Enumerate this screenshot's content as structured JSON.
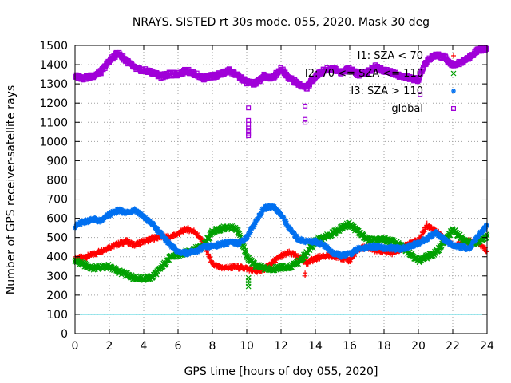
{
  "chart_data": {
    "type": "scatter",
    "title": "NRAYS. SISTED rt 30s mode. 055, 2020. Mask 30 deg",
    "xlabel": "GPS time [hours of doy 055, 2020]",
    "ylabel": "Number of GPS receiver-satellite rays",
    "xlim": [
      0,
      24
    ],
    "ylim": [
      0,
      1500
    ],
    "x_ticks": [
      "0",
      "2",
      "4",
      "6",
      "8",
      "10",
      "12",
      "14",
      "16",
      "18",
      "20",
      "22",
      "24"
    ],
    "y_ticks": [
      "0",
      "100",
      "200",
      "300",
      "400",
      "500",
      "600",
      "700",
      "800",
      "900",
      "1000",
      "1100",
      "1200",
      "1300",
      "1400",
      "1500"
    ],
    "grid": true,
    "legend_position": "top-right",
    "reference_line": {
      "y": 100,
      "color": "#00c0d0"
    },
    "series": [
      {
        "name": "I1: SZA < 70",
        "marker": "+",
        "color": "#ff0000",
        "x": [
          0,
          0.5,
          1,
          1.5,
          2,
          2.5,
          3,
          3.5,
          4,
          4.5,
          5,
          5.5,
          6,
          6.5,
          7,
          7.5,
          8,
          8.5,
          9,
          9.5,
          10,
          10.5,
          11,
          11.5,
          12,
          12.5,
          13,
          13.5,
          14,
          14.5,
          15,
          15.5,
          16,
          16.5,
          17,
          17.5,
          18,
          18.5,
          19,
          19.5,
          20,
          20.5,
          21,
          21.5,
          22,
          22.5,
          23,
          23.5,
          24
        ],
        "y": [
          390,
          395,
          410,
          430,
          450,
          465,
          480,
          460,
          480,
          495,
          505,
          500,
          520,
          545,
          530,
          470,
          360,
          340,
          345,
          345,
          340,
          325,
          335,
          370,
          405,
          420,
          400,
          370,
          390,
          405,
          400,
          395,
          380,
          440,
          450,
          430,
          430,
          420,
          440,
          475,
          480,
          565,
          535,
          500,
          460,
          470,
          480,
          470,
          430
        ]
      },
      {
        "name": "I2: 70 <= SZA <= 110",
        "marker": "x",
        "color": "#00a000",
        "x": [
          0,
          0.5,
          1,
          1.5,
          2,
          2.5,
          3,
          3.5,
          4,
          4.5,
          5,
          5.5,
          6,
          6.5,
          7,
          7.5,
          8,
          8.5,
          9,
          9.5,
          10,
          10.5,
          11,
          11.5,
          12,
          12.5,
          13,
          13.5,
          14,
          14.5,
          15,
          15.5,
          16,
          16.5,
          17,
          17.5,
          18,
          18.5,
          19,
          19.5,
          20,
          20.5,
          21,
          21.5,
          22,
          22.5,
          23,
          23.5,
          24
        ],
        "y": [
          380,
          360,
          340,
          345,
          350,
          325,
          305,
          290,
          285,
          295,
          340,
          395,
          410,
          425,
          440,
          460,
          530,
          545,
          555,
          535,
          400,
          355,
          340,
          335,
          345,
          345,
          370,
          420,
          480,
          500,
          520,
          550,
          570,
          530,
          490,
          485,
          490,
          480,
          455,
          420,
          380,
          400,
          420,
          480,
          540,
          500,
          470,
          480,
          510
        ]
      },
      {
        "name": "I3: SZA > 110",
        "marker": "*",
        "color": "#0070f0",
        "x": [
          0,
          0.5,
          1,
          1.5,
          2,
          2.5,
          3,
          3.5,
          4,
          4.5,
          5,
          5.5,
          6,
          6.5,
          7,
          7.5,
          8,
          8.5,
          9,
          9.5,
          10,
          10.5,
          11,
          11.5,
          12,
          12.5,
          13,
          13.5,
          14,
          14.5,
          15,
          15.5,
          16,
          16.5,
          17,
          17.5,
          18,
          18.5,
          19,
          19.5,
          20,
          20.5,
          21,
          21.5,
          22,
          22.5,
          23,
          23.5,
          24
        ],
        "y": [
          560,
          580,
          595,
          585,
          620,
          640,
          630,
          645,
          605,
          570,
          520,
          465,
          425,
          420,
          425,
          450,
          455,
          465,
          475,
          470,
          500,
          580,
          650,
          665,
          620,
          545,
          490,
          480,
          480,
          460,
          420,
          405,
          415,
          440,
          450,
          455,
          445,
          445,
          440,
          455,
          470,
          495,
          525,
          490,
          460,
          450,
          445,
          510,
          560
        ]
      },
      {
        "name": "global",
        "marker": "square",
        "color": "#a000d8",
        "x": [
          0,
          0.5,
          1,
          1.5,
          2,
          2.5,
          3,
          3.5,
          4,
          4.5,
          5,
          5.5,
          6,
          6.5,
          7,
          7.5,
          8,
          8.5,
          9,
          9.5,
          10,
          10.5,
          11,
          11.5,
          12,
          12.5,
          13,
          13.5,
          14,
          14.5,
          15,
          15.5,
          16,
          16.5,
          17,
          17.5,
          18,
          18.5,
          19,
          19.5,
          20,
          20.5,
          21,
          21.5,
          22,
          22.5,
          23,
          23.5,
          24
        ],
        "y": [
          1340,
          1330,
          1340,
          1360,
          1420,
          1460,
          1420,
          1380,
          1370,
          1360,
          1340,
          1350,
          1350,
          1370,
          1350,
          1330,
          1340,
          1350,
          1370,
          1340,
          1310,
          1300,
          1340,
          1330,
          1380,
          1330,
          1300,
          1280,
          1340,
          1370,
          1380,
          1360,
          1380,
          1350,
          1360,
          1390,
          1370,
          1360,
          1340,
          1330,
          1320,
          1420,
          1450,
          1440,
          1400,
          1410,
          1440,
          1480,
          1480
        ]
      }
    ],
    "outliers": {
      "global": [
        {
          "x": 10.1,
          "y": 1175
        },
        {
          "x": 10.1,
          "y": 1110
        },
        {
          "x": 10.1,
          "y": 1090
        },
        {
          "x": 10.1,
          "y": 1070
        },
        {
          "x": 10.1,
          "y": 1055
        },
        {
          "x": 10.1,
          "y": 1040
        },
        {
          "x": 10.1,
          "y": 1030
        },
        {
          "x": 13.4,
          "y": 1185
        },
        {
          "x": 13.4,
          "y": 1115
        },
        {
          "x": 13.4,
          "y": 1100
        },
        {
          "x": 20.1,
          "y": 1245
        }
      ],
      "I1: SZA < 70": [
        {
          "x": 13.4,
          "y": 300
        },
        {
          "x": 13.4,
          "y": 315
        }
      ],
      "I2: 70 <= SZA <= 110": [
        {
          "x": 10.1,
          "y": 245
        },
        {
          "x": 10.1,
          "y": 260
        },
        {
          "x": 10.1,
          "y": 275
        },
        {
          "x": 10.1,
          "y": 290
        }
      ]
    }
  }
}
